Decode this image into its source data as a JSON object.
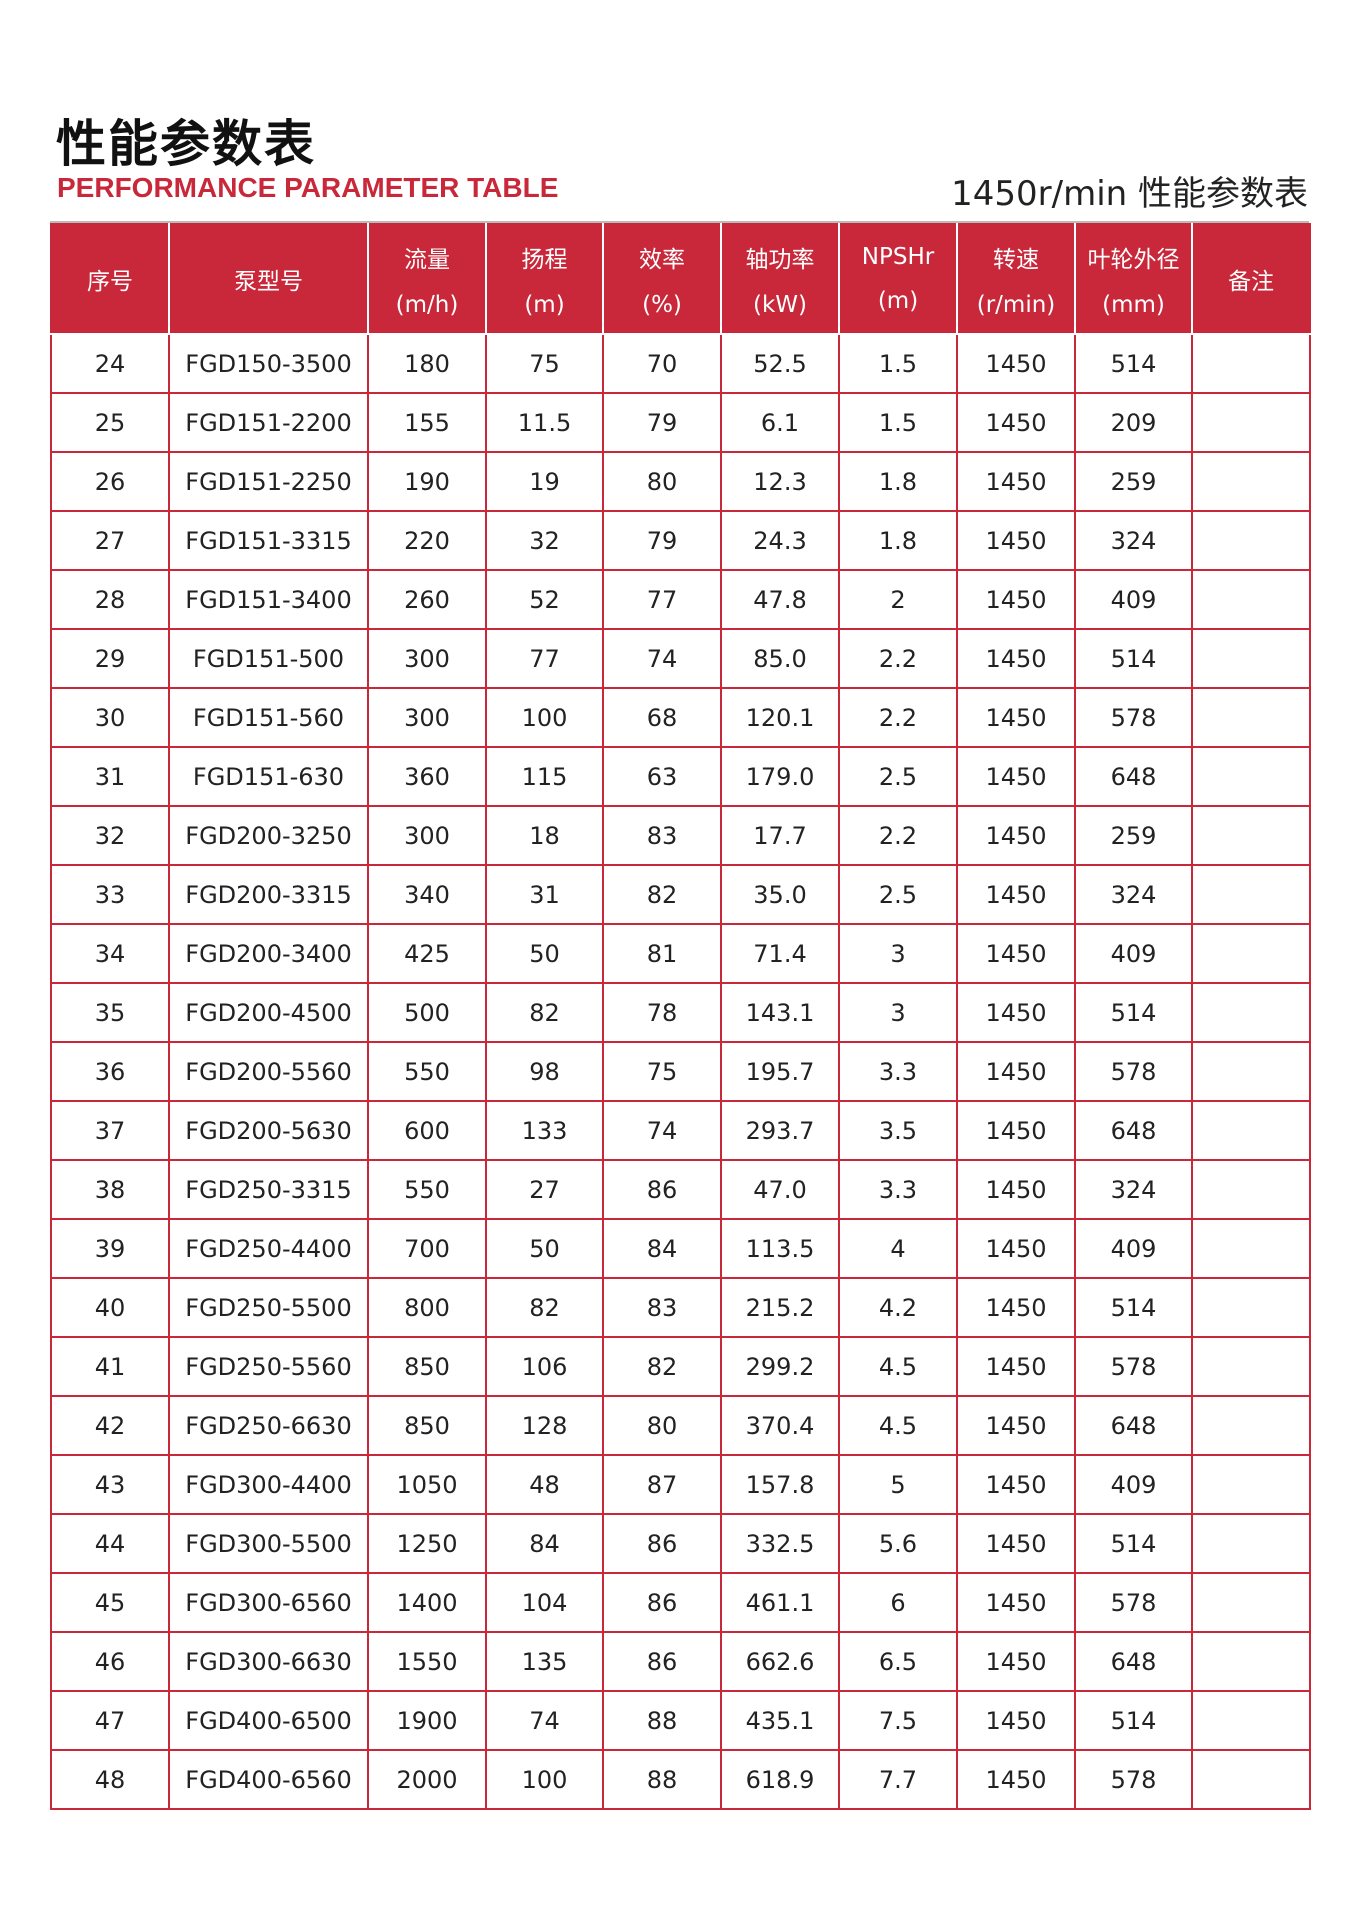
{
  "title": "性能参数表",
  "subtitle": "PERFORMANCE PARAMETER TABLE",
  "right_title": "1450r/min 性能参数表",
  "colors": {
    "accent": "#c8283a"
  },
  "headers": [
    {
      "label": "序号",
      "unit": ""
    },
    {
      "label": "泵型号",
      "unit": ""
    },
    {
      "label": "流量",
      "unit": "(m/h)"
    },
    {
      "label": "扬程",
      "unit": "(m)"
    },
    {
      "label": "效率",
      "unit": "(%)"
    },
    {
      "label": "轴功率",
      "unit": "(kW)"
    },
    {
      "label": "NPSHr",
      "unit": "(m)"
    },
    {
      "label": "转速",
      "unit": "(r/min)"
    },
    {
      "label": "叶轮外径",
      "unit": "(mm)"
    },
    {
      "label": "备注",
      "unit": ""
    }
  ],
  "rows": [
    [
      "24",
      "FGD150-3500",
      "180",
      "75",
      "70",
      "52.5",
      "1.5",
      "1450",
      "514",
      ""
    ],
    [
      "25",
      "FGD151-2200",
      "155",
      "11.5",
      "79",
      "6.1",
      "1.5",
      "1450",
      "209",
      ""
    ],
    [
      "26",
      "FGD151-2250",
      "190",
      "19",
      "80",
      "12.3",
      "1.8",
      "1450",
      "259",
      ""
    ],
    [
      "27",
      "FGD151-3315",
      "220",
      "32",
      "79",
      "24.3",
      "1.8",
      "1450",
      "324",
      ""
    ],
    [
      "28",
      "FGD151-3400",
      "260",
      "52",
      "77",
      "47.8",
      "2",
      "1450",
      "409",
      ""
    ],
    [
      "29",
      "FGD151-500",
      "300",
      "77",
      "74",
      "85.0",
      "2.2",
      "1450",
      "514",
      ""
    ],
    [
      "30",
      "FGD151-560",
      "300",
      "100",
      "68",
      "120.1",
      "2.2",
      "1450",
      "578",
      ""
    ],
    [
      "31",
      "FGD151-630",
      "360",
      "115",
      "63",
      "179.0",
      "2.5",
      "1450",
      "648",
      ""
    ],
    [
      "32",
      "FGD200-3250",
      "300",
      "18",
      "83",
      "17.7",
      "2.2",
      "1450",
      "259",
      ""
    ],
    [
      "33",
      "FGD200-3315",
      "340",
      "31",
      "82",
      "35.0",
      "2.5",
      "1450",
      "324",
      ""
    ],
    [
      "34",
      "FGD200-3400",
      "425",
      "50",
      "81",
      "71.4",
      "3",
      "1450",
      "409",
      ""
    ],
    [
      "35",
      "FGD200-4500",
      "500",
      "82",
      "78",
      "143.1",
      "3",
      "1450",
      "514",
      ""
    ],
    [
      "36",
      "FGD200-5560",
      "550",
      "98",
      "75",
      "195.7",
      "3.3",
      "1450",
      "578",
      ""
    ],
    [
      "37",
      "FGD200-5630",
      "600",
      "133",
      "74",
      "293.7",
      "3.5",
      "1450",
      "648",
      ""
    ],
    [
      "38",
      "FGD250-3315",
      "550",
      "27",
      "86",
      "47.0",
      "3.3",
      "1450",
      "324",
      ""
    ],
    [
      "39",
      "FGD250-4400",
      "700",
      "50",
      "84",
      "113.5",
      "4",
      "1450",
      "409",
      ""
    ],
    [
      "40",
      "FGD250-5500",
      "800",
      "82",
      "83",
      "215.2",
      "4.2",
      "1450",
      "514",
      ""
    ],
    [
      "41",
      "FGD250-5560",
      "850",
      "106",
      "82",
      "299.2",
      "4.5",
      "1450",
      "578",
      ""
    ],
    [
      "42",
      "FGD250-6630",
      "850",
      "128",
      "80",
      "370.4",
      "4.5",
      "1450",
      "648",
      ""
    ],
    [
      "43",
      "FGD300-4400",
      "1050",
      "48",
      "87",
      "157.8",
      "5",
      "1450",
      "409",
      ""
    ],
    [
      "44",
      "FGD300-5500",
      "1250",
      "84",
      "86",
      "332.5",
      "5.6",
      "1450",
      "514",
      ""
    ],
    [
      "45",
      "FGD300-6560",
      "1400",
      "104",
      "86",
      "461.1",
      "6",
      "1450",
      "578",
      ""
    ],
    [
      "46",
      "FGD300-6630",
      "1550",
      "135",
      "86",
      "662.6",
      "6.5",
      "1450",
      "648",
      ""
    ],
    [
      "47",
      "FGD400-6500",
      "1900",
      "74",
      "88",
      "435.1",
      "7.5",
      "1450",
      "514",
      ""
    ],
    [
      "48",
      "FGD400-6560",
      "2000",
      "100",
      "88",
      "618.9",
      "7.7",
      "1450",
      "578",
      ""
    ]
  ]
}
